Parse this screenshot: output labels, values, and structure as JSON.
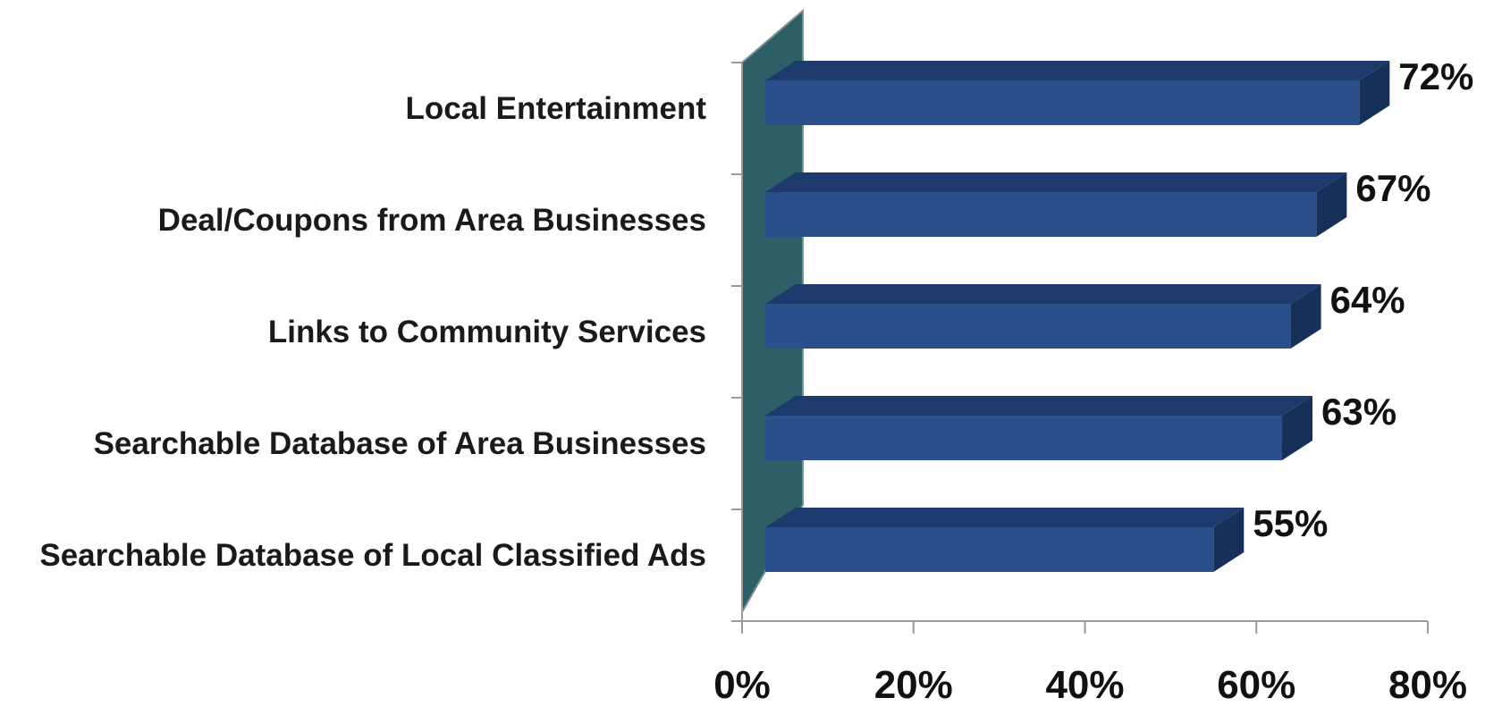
{
  "chart_data": {
    "type": "bar",
    "orientation": "horizontal",
    "style": "3d",
    "categories": [
      "Local Entertainment",
      "Deal/Coupons from Area Businesses",
      "Links to Community Services",
      "Searchable Database of Area Businesses",
      "Searchable Database of Local Classified Ads"
    ],
    "values": [
      72,
      67,
      64,
      63,
      55
    ],
    "value_labels": [
      "72%",
      "67%",
      "64%",
      "63%",
      "55%"
    ],
    "x_ticks": [
      "0%",
      "20%",
      "40%",
      "60%",
      "80%"
    ],
    "xlim": [
      0,
      80
    ],
    "title": "",
    "xlabel": "",
    "ylabel": "",
    "grid": false,
    "legend": "none",
    "colors": {
      "bar_front": "#2a4f8a",
      "bar_top": "#1d3a6c",
      "bar_side": "#16305a",
      "back_wall": "#2e5f66",
      "axis": "#9a9a9a"
    }
  }
}
